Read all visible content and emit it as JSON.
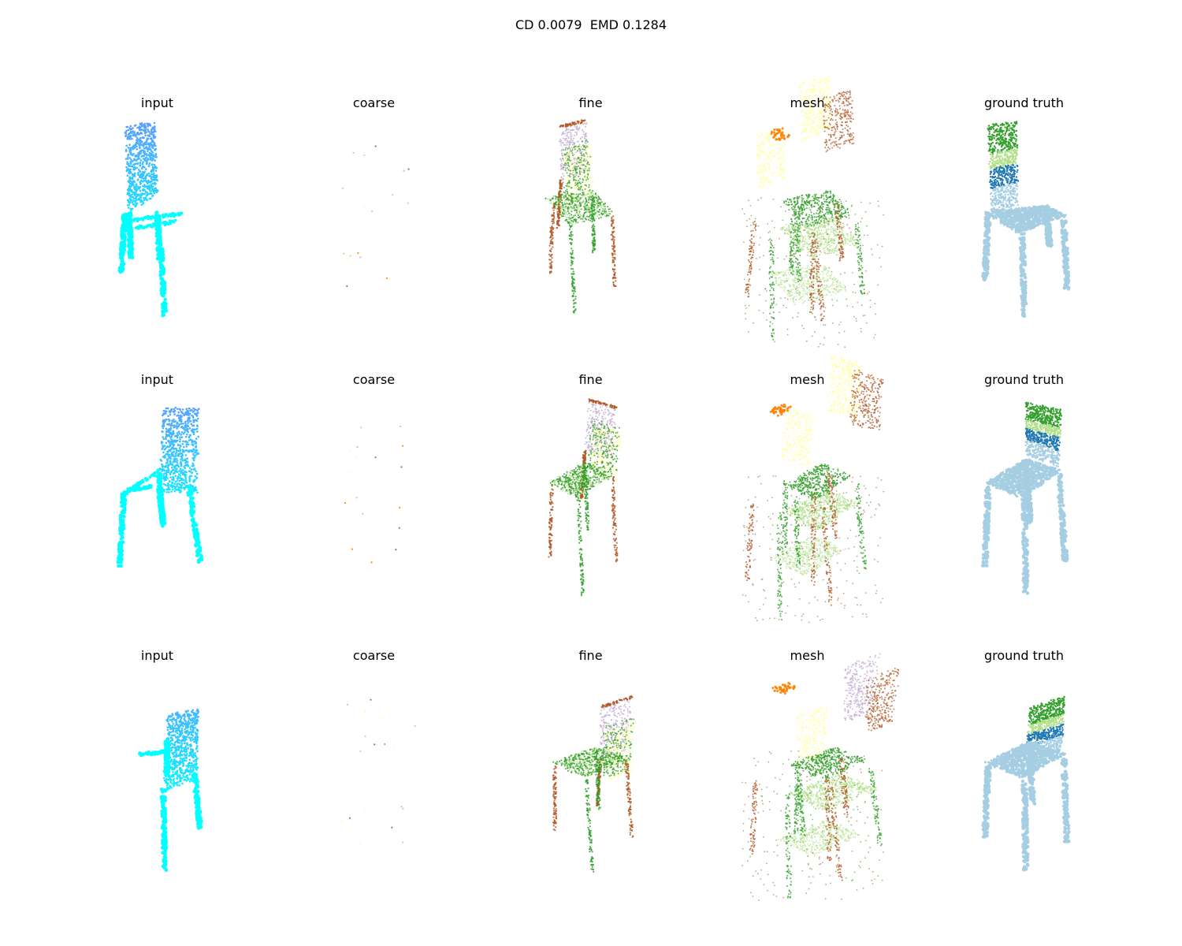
{
  "figure": {
    "suptitle": "CD 0.0079  EMD 0.1284"
  },
  "columns": [
    "input",
    "coarse",
    "fine",
    "mesh",
    "ground truth"
  ],
  "rows": [
    {
      "panels": [
        {
          "title": "input"
        },
        {
          "title": "coarse"
        },
        {
          "title": "fine"
        },
        {
          "title": "mesh"
        },
        {
          "title": "ground truth"
        }
      ]
    },
    {
      "panels": [
        {
          "title": "input"
        },
        {
          "title": "coarse"
        },
        {
          "title": "fine"
        },
        {
          "title": "mesh"
        },
        {
          "title": "ground truth"
        }
      ]
    },
    {
      "panels": [
        {
          "title": "input"
        },
        {
          "title": "coarse"
        },
        {
          "title": "fine"
        },
        {
          "title": "mesh"
        },
        {
          "title": "ground truth"
        }
      ]
    }
  ],
  "colors": {
    "input_top": "#5aa0ff",
    "input_bottom": "#00ffff",
    "purple": "#c5b0d5",
    "yellow": "#ffff99",
    "brown": "#b15928",
    "green": "#33a02c",
    "light_green": "#b2df8a",
    "orange": "#ff7f00",
    "blue": "#1f78b4",
    "light_blue": "#a6cee3"
  }
}
